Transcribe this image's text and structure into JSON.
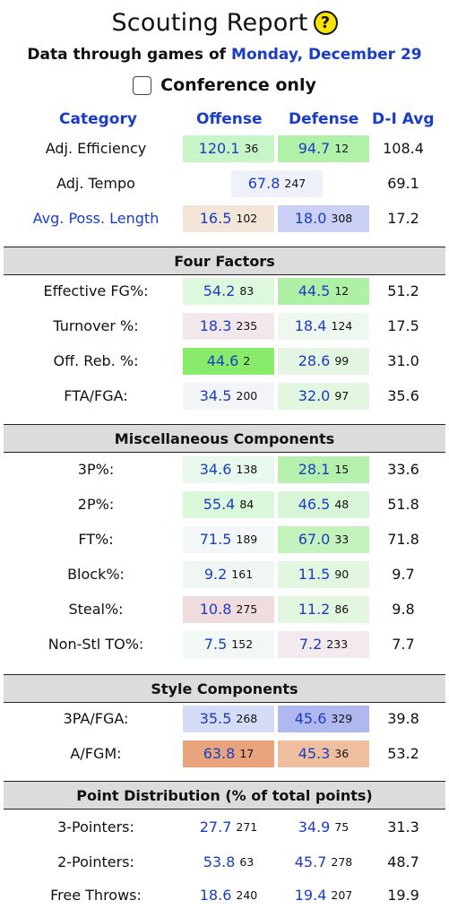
{
  "header": {
    "title": "Scouting Report",
    "help_icon": "?",
    "subtitle_prefix": "Data through games of",
    "subtitle_date": "Monday, December 29",
    "conference_only_label": "Conference only"
  },
  "columns": {
    "category": "Category",
    "offense": "Offense",
    "defense": "Defense",
    "avg": "D-I Avg"
  },
  "colors": {
    "link_blue": "#1a3dc5",
    "section_bg": "#dcdcdc"
  },
  "rows": {
    "adj_eff": {
      "label": "Adj. Efficiency",
      "off": "120.1",
      "off_rank": "36",
      "def": "94.7",
      "def_rank": "12",
      "avg": "108.4"
    },
    "adj_tempo": {
      "label": "Adj. Tempo",
      "val": "67.8",
      "rank": "247",
      "avg": "69.1"
    },
    "poss_len": {
      "label": "Avg. Poss. Length",
      "off": "16.5",
      "off_rank": "102",
      "def": "18.0",
      "def_rank": "308",
      "avg": "17.2"
    },
    "efg": {
      "label": "Effective FG%:",
      "off": "54.2",
      "off_rank": "83",
      "def": "44.5",
      "def_rank": "12",
      "avg": "51.2"
    },
    "to": {
      "label": "Turnover %:",
      "off": "18.3",
      "off_rank": "235",
      "def": "18.4",
      "def_rank": "124",
      "avg": "17.5"
    },
    "orb": {
      "label": "Off. Reb. %:",
      "off": "44.6",
      "off_rank": "2",
      "def": "28.6",
      "def_rank": "99",
      "avg": "31.0"
    },
    "fta": {
      "label": "FTA/FGA:",
      "off": "34.5",
      "off_rank": "200",
      "def": "32.0",
      "def_rank": "97",
      "avg": "35.6"
    },
    "p3": {
      "label": "3P%:",
      "off": "34.6",
      "off_rank": "138",
      "def": "28.1",
      "def_rank": "15",
      "avg": "33.6"
    },
    "p2": {
      "label": "2P%:",
      "off": "55.4",
      "off_rank": "84",
      "def": "46.5",
      "def_rank": "48",
      "avg": "51.8"
    },
    "ft": {
      "label": "FT%:",
      "off": "71.5",
      "off_rank": "189",
      "def": "67.0",
      "def_rank": "33",
      "avg": "71.8"
    },
    "blk": {
      "label": "Block%:",
      "off": "9.2",
      "off_rank": "161",
      "def": "11.5",
      "def_rank": "90",
      "avg": "9.7"
    },
    "stl": {
      "label": "Steal%:",
      "off": "10.8",
      "off_rank": "275",
      "def": "11.2",
      "def_rank": "86",
      "avg": "9.8"
    },
    "nstl": {
      "label": "Non-Stl TO%:",
      "off": "7.5",
      "off_rank": "152",
      "def": "7.2",
      "def_rank": "233",
      "avg": "7.7"
    },
    "pa3": {
      "label": "3PA/FGA:",
      "off": "35.5",
      "off_rank": "268",
      "def": "45.6",
      "def_rank": "329",
      "avg": "39.8"
    },
    "afgm": {
      "label": "A/FGM:",
      "off": "63.8",
      "off_rank": "17",
      "def": "45.3",
      "def_rank": "36",
      "avg": "53.2"
    },
    "pt3": {
      "label": "3-Pointers:",
      "off": "27.7",
      "off_rank": "271",
      "def": "34.9",
      "def_rank": "75",
      "avg": "31.3"
    },
    "pt2": {
      "label": "2-Pointers:",
      "off": "53.8",
      "off_rank": "63",
      "def": "45.7",
      "def_rank": "278",
      "avg": "48.7"
    },
    "ptft": {
      "label": "Free Throws:",
      "off": "18.6",
      "off_rank": "240",
      "def": "19.4",
      "def_rank": "207",
      "avg": "19.9"
    }
  },
  "sections": {
    "four_factors": "Four Factors",
    "misc": "Miscellaneous Components",
    "style": "Style Components",
    "points": "Point Distribution (% of total points)"
  }
}
